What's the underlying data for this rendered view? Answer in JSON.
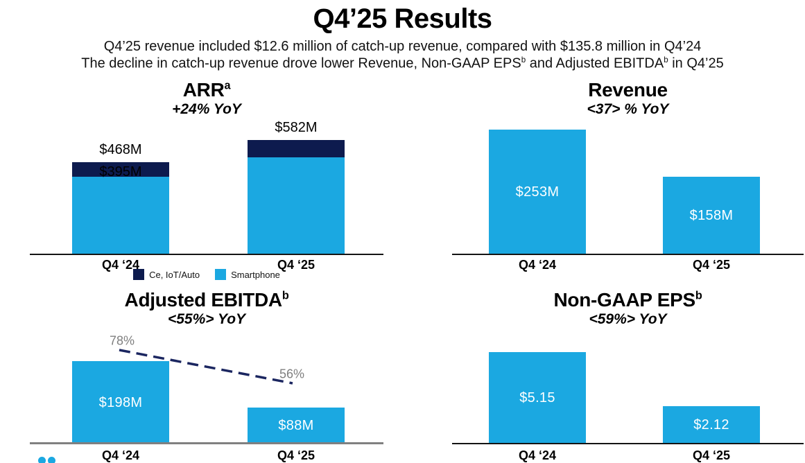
{
  "header": {
    "title": "Q4’25 Results",
    "subtitle_line1": "Q4’25 revenue included $12.6 million of catch-up revenue, compared with $135.8 million in Q4’24",
    "subtitle_line2": {
      "part1": "The decline in catch-up revenue drove lower Revenue, Non-GAAP EPS",
      "sup1": "b",
      "part2": " and Adjusted EBITDA",
      "sup2": "b",
      "part3": " in Q4’25"
    }
  },
  "colors": {
    "smartphone_blue": "#1BA8E1",
    "ce_iot_auto_navy": "#0D1B4E",
    "dashed_line_navy": "#1B2660",
    "pct_label_gray": "#7F7F7F",
    "axis_black": "#141414",
    "axis_gray": "#808080",
    "bar_label_white": "#FFFFFF"
  },
  "chart_data": [
    {
      "id": "arr",
      "type": "bar",
      "stacked": true,
      "title": "ARR",
      "title_sup": "a",
      "subtitle": "+24% YoY",
      "categories": [
        "Q4 ‘24",
        "Q4 ‘25"
      ],
      "series": [
        {
          "name": "Smartphone",
          "color": "#1BA8E1",
          "values": [
            395,
            494
          ]
        },
        {
          "name": "Ce, IoT/Auto",
          "color": "#0D1B4E",
          "values": [
            73,
            88
          ]
        }
      ],
      "totals": [
        468,
        582
      ],
      "total_labels": [
        "$468M",
        "$582M"
      ],
      "inner_labels": [
        "$395M",
        ""
      ],
      "ylim": [
        0,
        700
      ],
      "grid": false,
      "legend": [
        {
          "label": "Ce, IoT/Auto",
          "color": "#0D1B4E"
        },
        {
          "label": "Smartphone",
          "color": "#1BA8E1"
        }
      ],
      "legend_position": "bottom"
    },
    {
      "id": "revenue",
      "type": "bar",
      "title": "Revenue",
      "title_sup": "",
      "subtitle": "<37> % YoY",
      "categories": [
        "Q4 ‘24",
        "Q4 ‘25"
      ],
      "values": [
        253,
        158
      ],
      "bar_labels": [
        "$253M",
        "$158M"
      ],
      "bar_color": "#1BA8E1",
      "ylim": [
        0,
        280
      ],
      "grid": false
    },
    {
      "id": "ebitda",
      "type": "bar",
      "title": "Adjusted EBITDA",
      "title_sup": "b",
      "subtitle": "<55%> YoY",
      "categories": [
        "Q4 ‘24",
        "Q4 ‘25"
      ],
      "values": [
        198,
        88
      ],
      "bar_labels": [
        "$198M",
        "$88M"
      ],
      "bar_color": "#1BA8E1",
      "ylim": [
        0,
        330
      ],
      "grid": false,
      "line_overlay": {
        "name": "EBITDA margin percent",
        "values": [
          78,
          56
        ],
        "labels": [
          "78%",
          "56%"
        ],
        "style": "dashed",
        "color": "#1B2660"
      }
    },
    {
      "id": "eps",
      "type": "bar",
      "title": "Non-GAAP EPS",
      "title_sup": "b",
      "subtitle": "<59%> YoY",
      "categories": [
        "Q4 ‘24",
        "Q4 ‘25"
      ],
      "values": [
        5.15,
        2.12
      ],
      "bar_labels": [
        "$5.15",
        "$2.12"
      ],
      "bar_color": "#1BA8E1",
      "ylim": [
        0,
        7.75
      ],
      "grid": false
    }
  ],
  "logo": {
    "dot_color": "#1BA8E1"
  }
}
